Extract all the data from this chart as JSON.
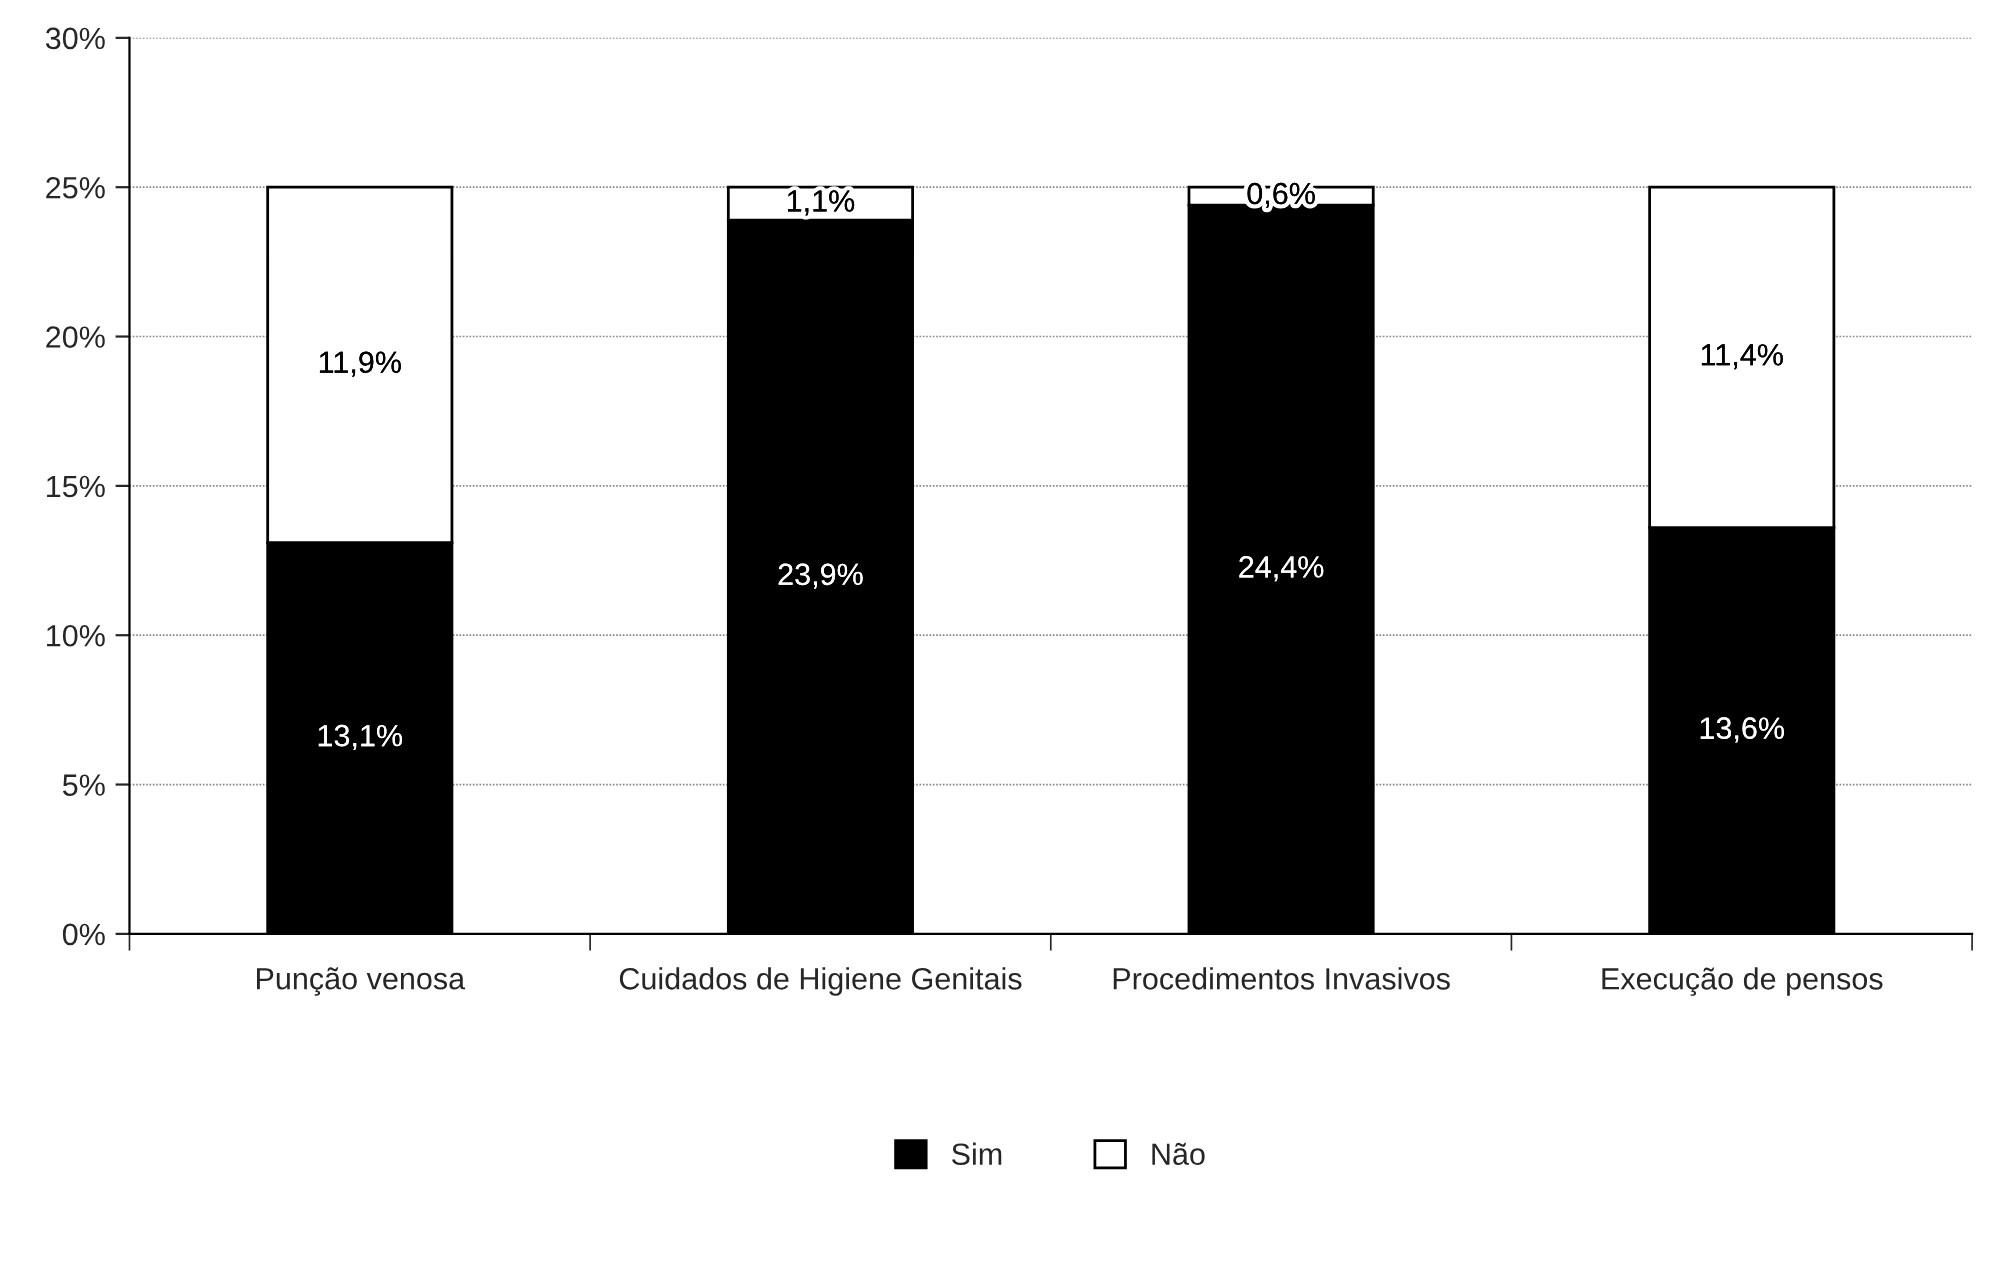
{
  "chart_data": {
    "type": "bar",
    "stacked": true,
    "categories": [
      "Punção venosa",
      "Cuidados de Higiene Genitais",
      "Procedimentos Invasivos",
      "Execução de pensos"
    ],
    "series": [
      {
        "name": "Sim",
        "color": "#000000",
        "values": [
          13.1,
          23.9,
          24.4,
          13.6
        ],
        "value_labels": [
          "13,1%",
          "23,9%",
          "24,4%",
          "13,6%"
        ]
      },
      {
        "name": "Não",
        "color": "#ffffff",
        "values": [
          11.9,
          1.1,
          0.6,
          11.4
        ],
        "value_labels": [
          "11,9%",
          "1,1%",
          "0,6%",
          "11,4%"
        ]
      }
    ],
    "ylim": [
      0,
      30
    ],
    "yticks": [
      {
        "value": 0,
        "label": "0%"
      },
      {
        "value": 5,
        "label": "5%"
      },
      {
        "value": 10,
        "label": "10%"
      },
      {
        "value": 15,
        "label": "15%"
      },
      {
        "value": 20,
        "label": "20%"
      },
      {
        "value": 25,
        "label": "25%"
      },
      {
        "value": 30,
        "label": "30%"
      }
    ],
    "grid": "y",
    "legend": "bottom"
  }
}
